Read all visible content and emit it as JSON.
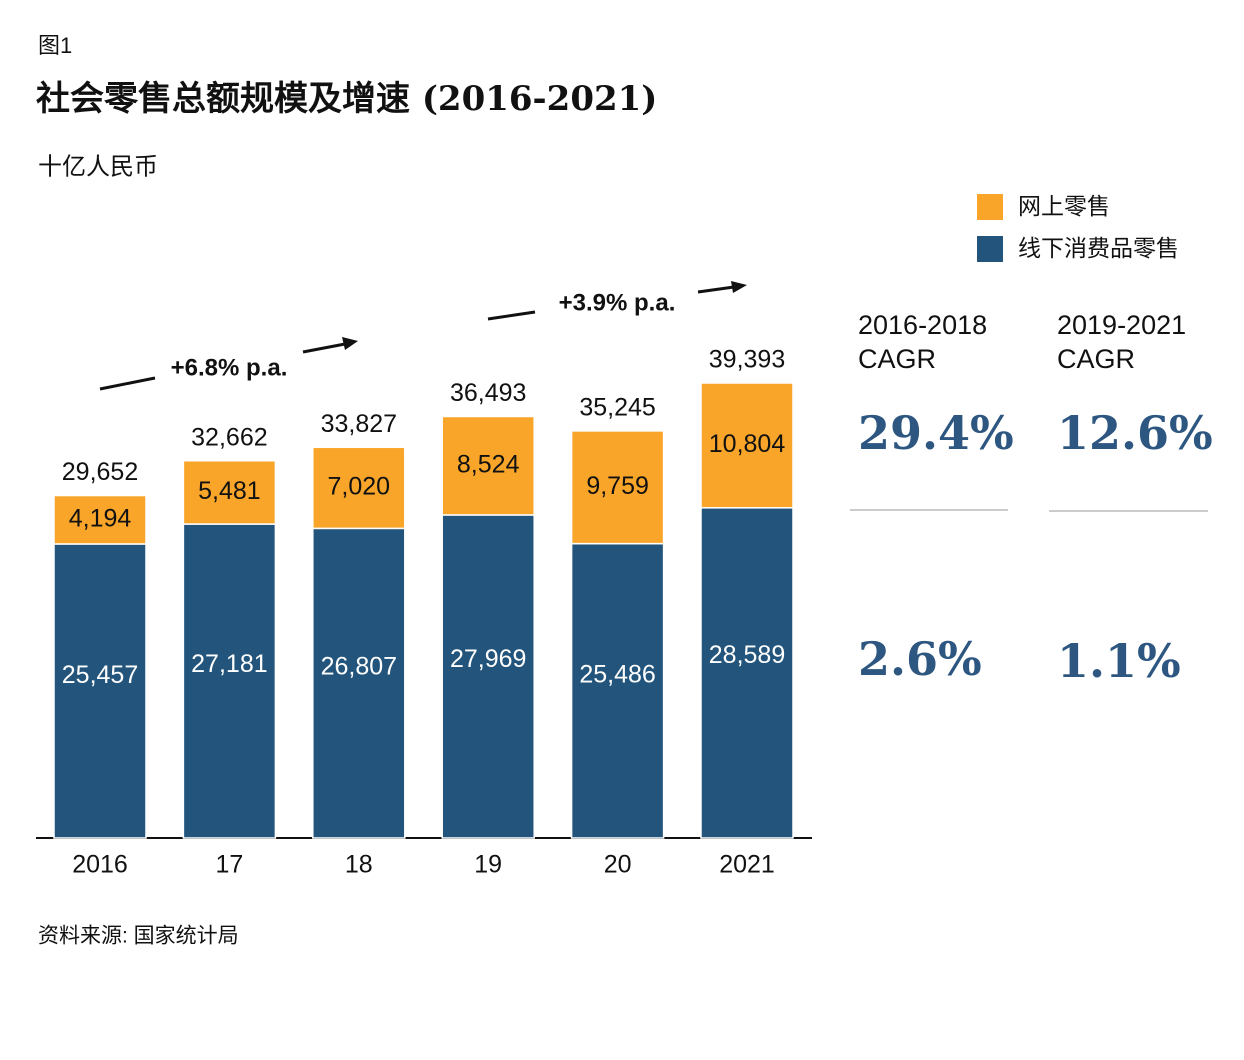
{
  "chart_data": {
    "type": "stacked-bar",
    "figure_label": "图1",
    "title": "社会零售总额规模及增速 (2016-2021)",
    "subtitle": "十亿人民币",
    "source": "资料来源: 国家统计局",
    "categories": [
      "2016",
      "17",
      "18",
      "19",
      "20",
      "2021"
    ],
    "series": [
      {
        "name": "线下消费品零售",
        "color": "#23557c",
        "values": [
          25457,
          27181,
          26807,
          27969,
          25486,
          28589
        ],
        "value_labels": [
          "25,457",
          "27,181",
          "26,807",
          "27,969",
          "25,486",
          "28,589"
        ]
      },
      {
        "name": "网上零售",
        "color": "#f9a52a",
        "values": [
          4194,
          5481,
          7020,
          8524,
          9759,
          10804
        ],
        "value_labels": [
          "4,194",
          "5,481",
          "7,020",
          "8,524",
          "9,759",
          "10,804"
        ]
      }
    ],
    "totals": [
      29652,
      32662,
      33827,
      36493,
      35245,
      39393
    ],
    "totals_labels": [
      "29,652",
      "32,662",
      "33,827",
      "36,493",
      "35,245",
      "39,393"
    ],
    "annotations": [
      "+6.8% p.a.",
      "+3.9% p.a."
    ],
    "cagr": {
      "headers": [
        [
          "2016-2018",
          "CAGR"
        ],
        [
          "2019-2021",
          "CAGR"
        ]
      ],
      "online": [
        "29.4%",
        "12.6%"
      ],
      "offline": [
        "2.6%",
        "1.1%"
      ]
    }
  }
}
